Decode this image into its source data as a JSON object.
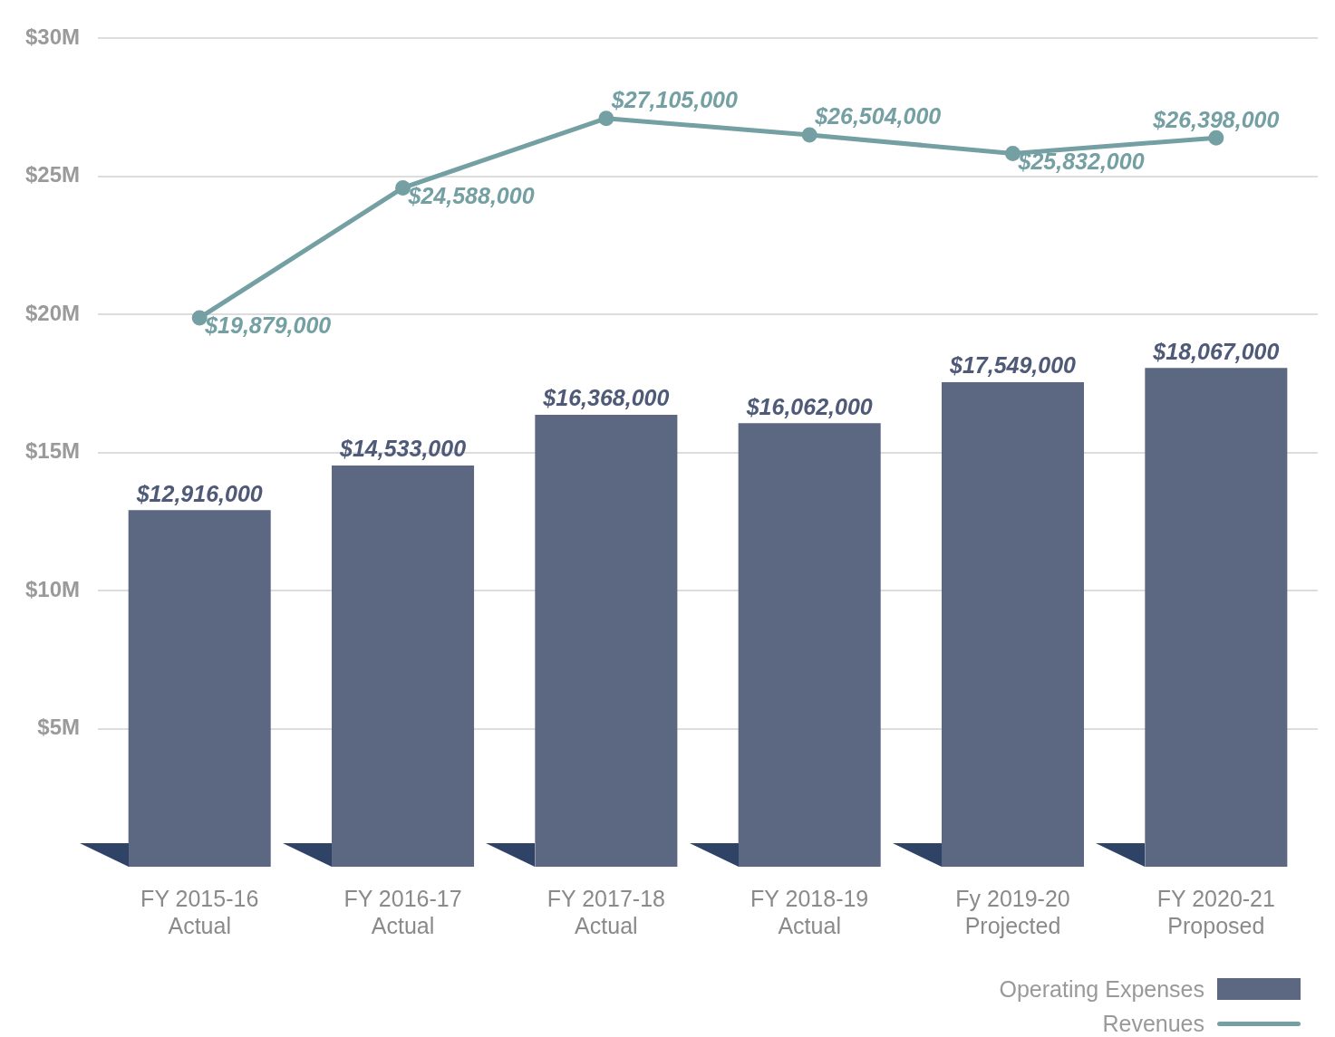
{
  "chart_data": {
    "type": "bar",
    "categories": [
      "FY 2015-16\nActual",
      "FY 2016-17\nActual",
      "FY 2017-18\nActual",
      "FY 2018-19\nActual",
      "Fy 2019-20\nProjected",
      "FY 2020-21\nProposed"
    ],
    "series": [
      {
        "name": "Operating Expenses",
        "color": "#5c6882",
        "values": [
          12916000,
          14533000,
          16368000,
          16062000,
          17549000,
          18067000
        ],
        "value_labels": [
          "$12,916,000",
          "$14,533,000",
          "$16,368,000",
          "$16,062,000",
          "$17,549,000",
          "$18,067,000"
        ]
      },
      {
        "name": "Revenues",
        "type": "line",
        "color": "#74a0a3",
        "marker": "circle",
        "values": [
          19879000,
          24588000,
          27105000,
          26504000,
          25832000,
          26398000
        ],
        "value_labels": [
          "$19,879,000",
          "$24,588,000",
          "$27,105,000",
          "$26,504,000",
          "$25,832,000",
          "$26,398,000"
        ]
      }
    ],
    "ylim": [
      0,
      30000000
    ],
    "yticks": [
      {
        "value": 5000000,
        "label": "$5M"
      },
      {
        "value": 10000000,
        "label": "$10M"
      },
      {
        "value": 15000000,
        "label": "$15M"
      },
      {
        "value": 20000000,
        "label": "$20M"
      },
      {
        "value": 25000000,
        "label": "$25M"
      },
      {
        "value": 30000000,
        "label": "$30M"
      }
    ],
    "grid": "y",
    "legend": "bottom right"
  }
}
